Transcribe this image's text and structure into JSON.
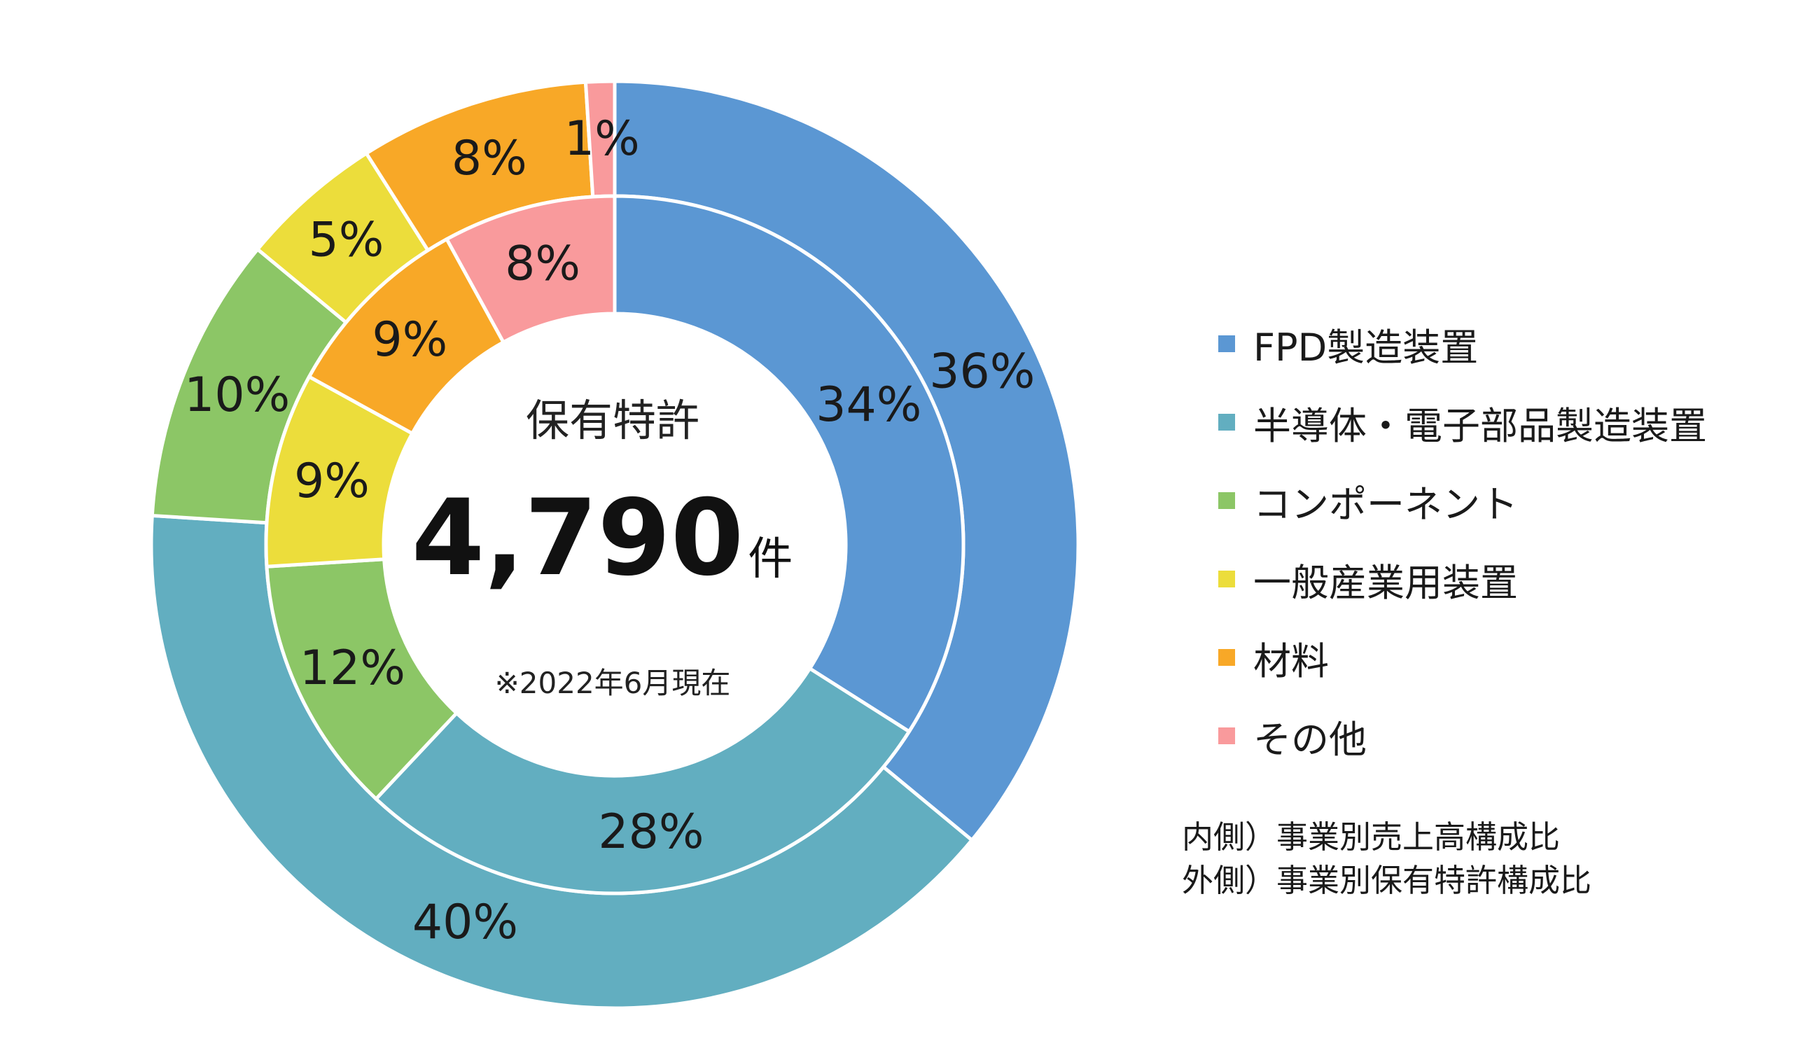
{
  "chart_data": {
    "type": "pie",
    "categories": [
      "FPD製造装置",
      "半導体・電子部品製造装置",
      "コンポーネント",
      "一般産業用装置",
      "材料",
      "その他"
    ],
    "colors": [
      "#5B97D3",
      "#62AEC0",
      "#8CC666",
      "#ECDD3B",
      "#F8A827",
      "#F99A9C"
    ],
    "series": [
      {
        "name": "外側）事業別保有特許構成比",
        "ring": "outer",
        "values": [
          36,
          40,
          10,
          5,
          8,
          1
        ],
        "labels": [
          "36%",
          "40%",
          "10%",
          "5%",
          "8%",
          "1%"
        ]
      },
      {
        "name": "内側）事業別売上高構成比",
        "ring": "inner",
        "values": [
          34,
          28,
          12,
          9,
          9,
          8
        ],
        "labels": [
          "34%",
          "28%",
          "12%",
          "9%",
          "9%",
          "8%"
        ]
      }
    ]
  },
  "center": {
    "title": "保有特許",
    "value": "4,790",
    "unit": "件",
    "note": "※2022年6月現在"
  },
  "legend": [
    {
      "label": "FPD製造装置",
      "color": "#5B97D3"
    },
    {
      "label": "半導体・電子部品製造装置",
      "color": "#62AEC0"
    },
    {
      "label": "コンポーネント",
      "color": "#8CC666"
    },
    {
      "label": "一般産業用装置",
      "color": "#ECDD3B"
    },
    {
      "label": "材料",
      "color": "#F8A827"
    },
    {
      "label": "その他",
      "color": "#F99A9C"
    }
  ],
  "notes": {
    "inner": "内側）事業別売上高構成比",
    "outer": "外側）事業別保有特許構成比"
  }
}
